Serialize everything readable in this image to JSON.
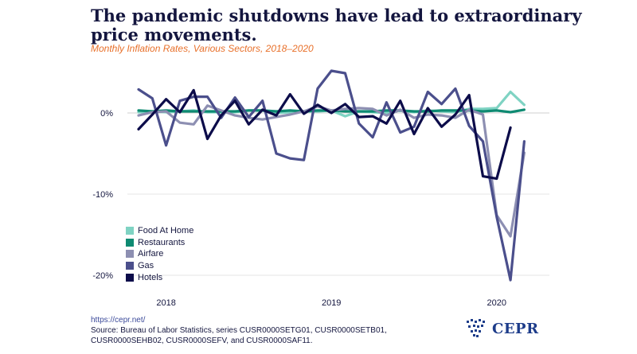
{
  "title": "The pandemic shutdowns have lead to extraordinary price movements.",
  "subtitle": "Monthly Inflation Rates, Various Sectors, 2018–2020",
  "source_url": "https://cepr.net/",
  "source_note": "Source: Bureau of Labor Statistics, series CUSR0000SETG01, CUSR0000SETB01, CUSR0000SEHB02, CUSR0000SEFV, and CUSR0000SAF11.",
  "logo_text": "CEPR",
  "colors": {
    "title": "#14163f",
    "subtitle": "#e8702a",
    "grid": "#e6e6e6",
    "zero_line": "#cfcfcf"
  },
  "chart_data": {
    "type": "line",
    "x": [
      "2018-01",
      "2018-02",
      "2018-03",
      "2018-04",
      "2018-05",
      "2018-06",
      "2018-07",
      "2018-08",
      "2018-09",
      "2018-10",
      "2018-11",
      "2018-12",
      "2019-01",
      "2019-02",
      "2019-03",
      "2019-04",
      "2019-05",
      "2019-06",
      "2019-07",
      "2019-08",
      "2019-09",
      "2019-10",
      "2019-11",
      "2019-12",
      "2020-01",
      "2020-02",
      "2020-03",
      "2020-04",
      "2020-05"
    ],
    "x_ticks": [
      {
        "label": "2018",
        "at": "2018-03"
      },
      {
        "label": "2019",
        "at": "2019-03"
      },
      {
        "label": "2020",
        "at": "2020-03"
      }
    ],
    "ylim": [
      -21,
      4.5
    ],
    "y_ticks": [
      {
        "value": 0,
        "label": "0%"
      },
      {
        "value": -10,
        "label": "-10%"
      },
      {
        "value": -20,
        "label": "-20%"
      }
    ],
    "grid": true,
    "legend_position": "bottom-left",
    "series": [
      {
        "name": "Food At Home",
        "color": "#7fd3c3",
        "values": [
          0.1,
          0.2,
          0.1,
          0.2,
          0.3,
          0.1,
          0.1,
          0.1,
          0.3,
          0.3,
          0.0,
          0.1,
          0.2,
          0.2,
          0.3,
          -0.4,
          0.2,
          0.1,
          0.0,
          0.3,
          0.1,
          0.3,
          0.2,
          0.1,
          0.5,
          0.5,
          0.6,
          2.6,
          1.0
        ]
      },
      {
        "name": "Restaurants",
        "color": "#0e8a72",
        "values": [
          0.3,
          0.2,
          0.3,
          0.2,
          0.2,
          0.2,
          0.2,
          0.2,
          0.3,
          0.3,
          0.2,
          0.3,
          0.2,
          0.3,
          0.3,
          0.2,
          0.2,
          0.2,
          0.3,
          0.3,
          0.2,
          0.2,
          0.3,
          0.3,
          0.3,
          0.2,
          0.3,
          0.1,
          0.4
        ]
      },
      {
        "name": "Airfare",
        "color": "#8d8fb2",
        "values": [
          -0.3,
          0.1,
          0.2,
          -1.2,
          -1.4,
          0.9,
          0.3,
          -0.3,
          -0.6,
          -0.8,
          -0.5,
          -0.2,
          0.2,
          0.8,
          0.3,
          0.5,
          0.6,
          0.5,
          -0.3,
          0.4,
          -0.6,
          -0.2,
          -0.3,
          -0.6,
          0.4,
          -0.2,
          -12.6,
          -15.2,
          -4.9
        ]
      },
      {
        "name": "Gas",
        "color": "#4b4f8c",
        "values": [
          2.9,
          1.8,
          -4.0,
          1.5,
          2.0,
          2.0,
          -0.6,
          1.9,
          -0.5,
          1.5,
          -5.0,
          -5.6,
          -5.8,
          3.0,
          5.2,
          4.9,
          -1.3,
          -3.0,
          1.3,
          -2.4,
          -1.7,
          2.6,
          1.1,
          3.0,
          -1.6,
          -3.5,
          -12.8,
          -20.6,
          -3.5
        ]
      },
      {
        "name": "Hotels",
        "color": "#0c0c4a",
        "values": [
          -2.0,
          -0.2,
          1.7,
          0.1,
          2.8,
          -3.2,
          -0.3,
          1.5,
          -1.4,
          0.4,
          -0.3,
          2.3,
          -0.1,
          1.0,
          0.0,
          1.1,
          -0.5,
          -0.4,
          -1.3,
          1.5,
          -2.6,
          0.6,
          -1.7,
          -0.2,
          2.2,
          -7.8,
          -8.1,
          -1.8,
          null
        ]
      }
    ]
  }
}
